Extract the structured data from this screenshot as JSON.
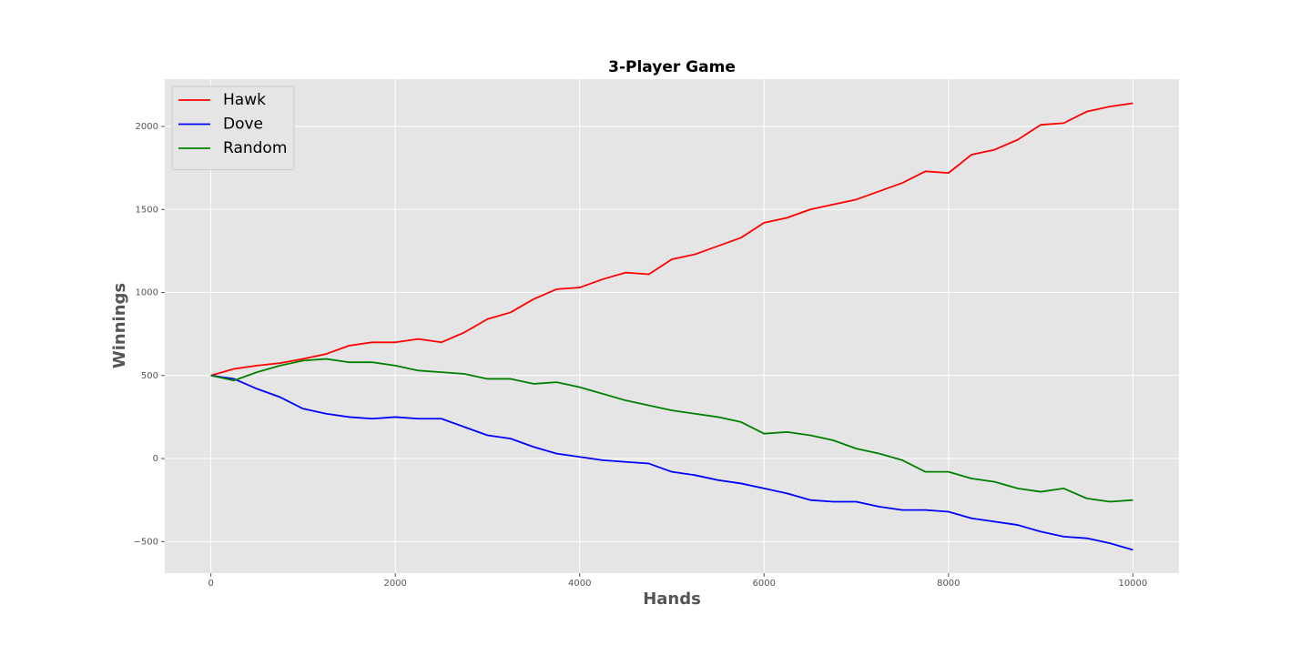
{
  "chart_data": {
    "type": "line",
    "title": "3-Player Game",
    "x_label": "Hands",
    "y_label": "Winnings",
    "x": [
      0,
      250,
      500,
      750,
      1000,
      1250,
      1500,
      1750,
      2000,
      2250,
      2500,
      2750,
      3000,
      3250,
      3500,
      3750,
      4000,
      4250,
      4500,
      4750,
      5000,
      5250,
      5500,
      5750,
      6000,
      6250,
      6500,
      6750,
      7000,
      7250,
      7500,
      7750,
      8000,
      8250,
      8500,
      8750,
      9000,
      9250,
      9500,
      9750,
      10000
    ],
    "series": [
      {
        "name": "Hawk",
        "color": "#ff0000",
        "values": [
          500,
          540,
          560,
          575,
          600,
          630,
          680,
          700,
          700,
          720,
          700,
          760,
          840,
          880,
          960,
          1020,
          1030,
          1080,
          1120,
          1110,
          1200,
          1230,
          1280,
          1330,
          1420,
          1450,
          1500,
          1530,
          1560,
          1610,
          1660,
          1730,
          1720,
          1830,
          1860,
          1920,
          2010,
          2020,
          2090,
          2120,
          2140
        ]
      },
      {
        "name": "Dove",
        "color": "#0000ff",
        "values": [
          500,
          480,
          420,
          370,
          300,
          270,
          250,
          240,
          250,
          240,
          240,
          190,
          140,
          120,
          70,
          30,
          10,
          -10,
          -20,
          -30,
          -80,
          -100,
          -130,
          -150,
          -180,
          -210,
          -250,
          -260,
          -260,
          -290,
          -310,
          -310,
          -320,
          -360,
          -380,
          -400,
          -440,
          -470,
          -480,
          -510,
          -550
        ]
      },
      {
        "name": "Random",
        "color": "#008000",
        "values": [
          500,
          470,
          520,
          560,
          590,
          600,
          580,
          580,
          560,
          530,
          520,
          510,
          480,
          480,
          450,
          460,
          430,
          390,
          350,
          320,
          290,
          270,
          250,
          220,
          150,
          160,
          140,
          110,
          60,
          30,
          -10,
          -80,
          -80,
          -120,
          -140,
          -180,
          -200,
          -180,
          -240,
          -260,
          -250
        ]
      }
    ],
    "xlim": [
      -500,
      10500
    ],
    "ylim": [
      -690,
      2285
    ],
    "xticks": [
      0,
      2000,
      4000,
      6000,
      8000,
      10000
    ],
    "yticks": [
      {
        "value": -500,
        "label": "−500"
      },
      0,
      500,
      1000,
      1500,
      2000
    ],
    "grid": true,
    "legend": "upper left"
  }
}
